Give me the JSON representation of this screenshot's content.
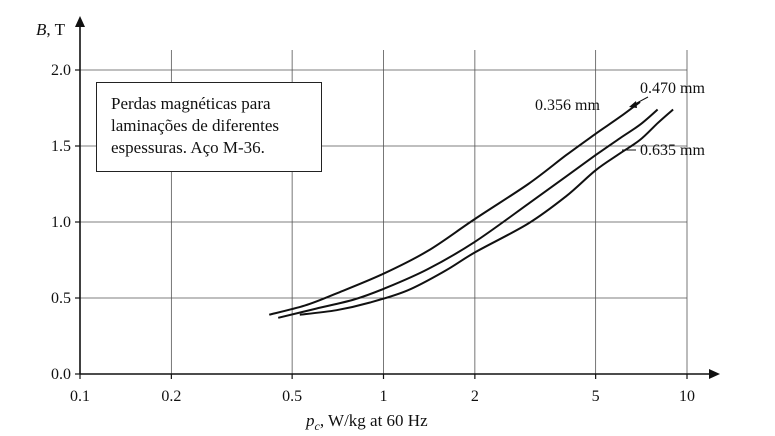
{
  "chart_data": {
    "type": "line",
    "x_scale": "log",
    "xlim": [
      0.1,
      10
    ],
    "ylim": [
      0.0,
      2.0
    ],
    "grid": true,
    "ylabel": {
      "symbol": "B",
      "unit": ", T"
    },
    "xlabel": {
      "symbol": "p",
      "subscript": "c",
      "unit": ", W/kg at 60 Hz"
    },
    "x_ticks": [
      {
        "value": 0.1,
        "label": "0.1"
      },
      {
        "value": 0.2,
        "label": "0.2"
      },
      {
        "value": 0.5,
        "label": "0.5"
      },
      {
        "value": 1,
        "label": "1"
      },
      {
        "value": 2,
        "label": "2"
      },
      {
        "value": 5,
        "label": "5"
      },
      {
        "value": 10,
        "label": "10"
      }
    ],
    "y_ticks": [
      {
        "value": 0.0,
        "label": "0.0"
      },
      {
        "value": 0.5,
        "label": "0.5"
      },
      {
        "value": 1.0,
        "label": "1.0"
      },
      {
        "value": 1.5,
        "label": "1.5"
      },
      {
        "value": 2.0,
        "label": "2.0"
      }
    ],
    "series": [
      {
        "name": "0.356 mm",
        "x": [
          0.42,
          0.55,
          0.7,
          1.0,
          1.4,
          2.0,
          3.0,
          4.0,
          5.0,
          6.0,
          7.0
        ],
        "y": [
          0.39,
          0.45,
          0.53,
          0.66,
          0.81,
          1.02,
          1.25,
          1.44,
          1.58,
          1.69,
          1.79
        ]
      },
      {
        "name": "0.470 mm",
        "x": [
          0.45,
          0.6,
          0.8,
          1.0,
          1.4,
          2.0,
          3.0,
          4.0,
          5.0,
          6.0,
          7.0,
          8.0
        ],
        "y": [
          0.37,
          0.43,
          0.49,
          0.56,
          0.69,
          0.87,
          1.12,
          1.3,
          1.44,
          1.55,
          1.64,
          1.74
        ]
      },
      {
        "name": "0.635 mm",
        "x": [
          0.53,
          0.7,
          0.9,
          1.2,
          1.6,
          2.0,
          3.0,
          4.0,
          5.0,
          6.0,
          7.0,
          8.0,
          9.0
        ],
        "y": [
          0.39,
          0.42,
          0.47,
          0.55,
          0.68,
          0.8,
          0.99,
          1.17,
          1.34,
          1.45,
          1.54,
          1.65,
          1.74
        ]
      }
    ]
  },
  "annotation": {
    "lines": [
      "Perdas magnéticas para",
      "laminações de diferentes",
      "espessuras. Aço M-36."
    ]
  }
}
